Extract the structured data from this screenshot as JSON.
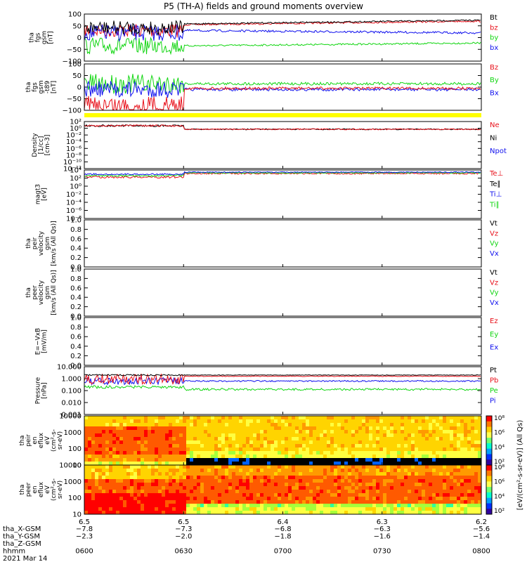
{
  "title": "P5 (TH-A) fields and ground moments overview",
  "colors": {
    "black": "#000000",
    "red": "#e8101a",
    "green": "#12d612",
    "blue": "#1010ee",
    "yellow": "#ffff00"
  },
  "panels": [
    {
      "id": "fgs-gsm",
      "ylabel": [
        "tha",
        "fgs",
        "gsm",
        "[nT]"
      ],
      "yticks": [
        "100",
        "50",
        "0",
        "−50",
        "−100"
      ],
      "ylim": [
        -100,
        100
      ],
      "legend": [
        {
          "text": "Bt",
          "color": "black"
        },
        {
          "text": "bz",
          "color": "red"
        },
        {
          "text": "by",
          "color": "green"
        },
        {
          "text": "bx",
          "color": "blue"
        }
      ]
    },
    {
      "id": "fgs-gsm-t89",
      "ylabel": [
        "tha",
        "fgs",
        "gsm",
        "-t89",
        "[nT]"
      ],
      "yticks": [
        "100",
        "50",
        "0",
        "−50",
        "−100"
      ],
      "ylim": [
        -125,
        75
      ],
      "legend": [
        {
          "text": "Bz",
          "color": "red"
        },
        {
          "text": "By",
          "color": "green"
        },
        {
          "text": "Bx",
          "color": "blue"
        }
      ]
    },
    {
      "id": "density",
      "ylabel": [
        "Density",
        "[1/cc]",
        "[cm-3]"
      ],
      "yticks": [
        "10²",
        "10⁰",
        "10⁻²",
        "10⁻⁴",
        "10⁻⁶",
        "10⁻⁸",
        "10⁻¹⁰",
        "10⁻¹²"
      ],
      "legend": [
        {
          "text": "Ne",
          "color": "red"
        },
        {
          "text": "Ni",
          "color": "black"
        },
        {
          "text": "Npot",
          "color": "blue"
        }
      ]
    },
    {
      "id": "temperature",
      "ylabel": [
        "magt3",
        "[eV]"
      ],
      "yticks": [
        "10⁴",
        "10²",
        "10⁰",
        "10⁻²",
        "10⁻⁴",
        "10⁻⁶",
        "10⁻⁸"
      ],
      "legend": [
        {
          "text": "Te⊥",
          "color": "red"
        },
        {
          "text": "Te∥",
          "color": "black"
        },
        {
          "text": "Ti⊥",
          "color": "blue"
        },
        {
          "text": "Ti∥",
          "color": "green"
        }
      ]
    },
    {
      "id": "peir-velocity",
      "ylabel": [
        "tha",
        "peir",
        "velocity",
        "gsm",
        "[km/s (All Qs)]"
      ],
      "yticks": [
        "1.0",
        "0.8",
        "0.6",
        "0.4",
        "0.2",
        "0.0"
      ],
      "legend": [
        {
          "text": "Vt",
          "color": "black"
        },
        {
          "text": "Vz",
          "color": "red"
        },
        {
          "text": "Vy",
          "color": "green"
        },
        {
          "text": "Vx",
          "color": "blue"
        }
      ]
    },
    {
      "id": "peer-velocity",
      "ylabel": [
        "tha",
        "peer",
        "velocity",
        "gsm",
        "[km/s (All Qs)]"
      ],
      "yticks": [
        "1.0",
        "0.8",
        "0.6",
        "0.4",
        "0.2",
        "0.0"
      ],
      "legend": [
        {
          "text": "Vt",
          "color": "black"
        },
        {
          "text": "Vz",
          "color": "red"
        },
        {
          "text": "Vy",
          "color": "green"
        },
        {
          "text": "Vx",
          "color": "blue"
        }
      ]
    },
    {
      "id": "efield",
      "ylabel": [
        "E=−VxB",
        "[mV/m]"
      ],
      "yticks": [
        "1.0",
        "0.8",
        "0.6",
        "0.4",
        "0.2",
        "0.0"
      ],
      "legend": [
        {
          "text": "Ez",
          "color": "red"
        },
        {
          "text": "Ey",
          "color": "green"
        },
        {
          "text": "Ex",
          "color": "blue"
        }
      ]
    },
    {
      "id": "pressure",
      "ylabel": [
        "Pressure",
        "[nPa]"
      ],
      "yticks": [
        "10.000",
        "1.000",
        "0.100",
        "0.010",
        "0.001"
      ],
      "legend": [
        {
          "text": "Pt",
          "color": "black"
        },
        {
          "text": "Pb",
          "color": "red"
        },
        {
          "text": "Pe",
          "color": "green"
        },
        {
          "text": "Pi",
          "color": "blue"
        }
      ]
    },
    {
      "id": "peir-spectrogram",
      "ylabel": [
        "tha",
        "peir",
        "en",
        "eflux",
        "eV",
        "(cm²-s-",
        "sr-eV)"
      ],
      "yticks": [
        "10000",
        "1000",
        "100",
        "10"
      ]
    },
    {
      "id": "peer-spectrogram",
      "ylabel": [
        "tha",
        "peer",
        "en",
        "eflux",
        "eV",
        "(cm²-s-",
        "sr-eV)"
      ],
      "yticks": [
        "10000",
        "1000",
        "100",
        "10"
      ]
    }
  ],
  "colorbar": {
    "ticks": [
      "10⁸",
      "10⁶",
      "10⁴",
      "10²"
    ],
    "label": "[eV/(cm²-s-sr-eV)] (All Qs)"
  },
  "xaxis": {
    "rows": [
      {
        "label": "tha_X-GSM",
        "values": [
          "−7.8",
          "−7.3",
          "−6.8",
          "−6.3",
          "−5.6"
        ]
      },
      {
        "label": "tha_Y-GSM",
        "values": [
          "−2.3",
          "−2.0",
          "−1.8",
          "−1.6",
          "−1.4"
        ]
      },
      {
        "label": "tha_Z-GSM",
        "values": [
          "",
          "",
          "",
          "",
          ""
        ]
      },
      {
        "label": "hhmm",
        "values": [
          "0600",
          "0630",
          "0700",
          "0730",
          "0800"
        ]
      }
    ],
    "top_values": [
      "6.5",
      "6.5",
      "6.4",
      "6.3",
      "6.2"
    ],
    "date": "2021 Mar 14"
  }
}
